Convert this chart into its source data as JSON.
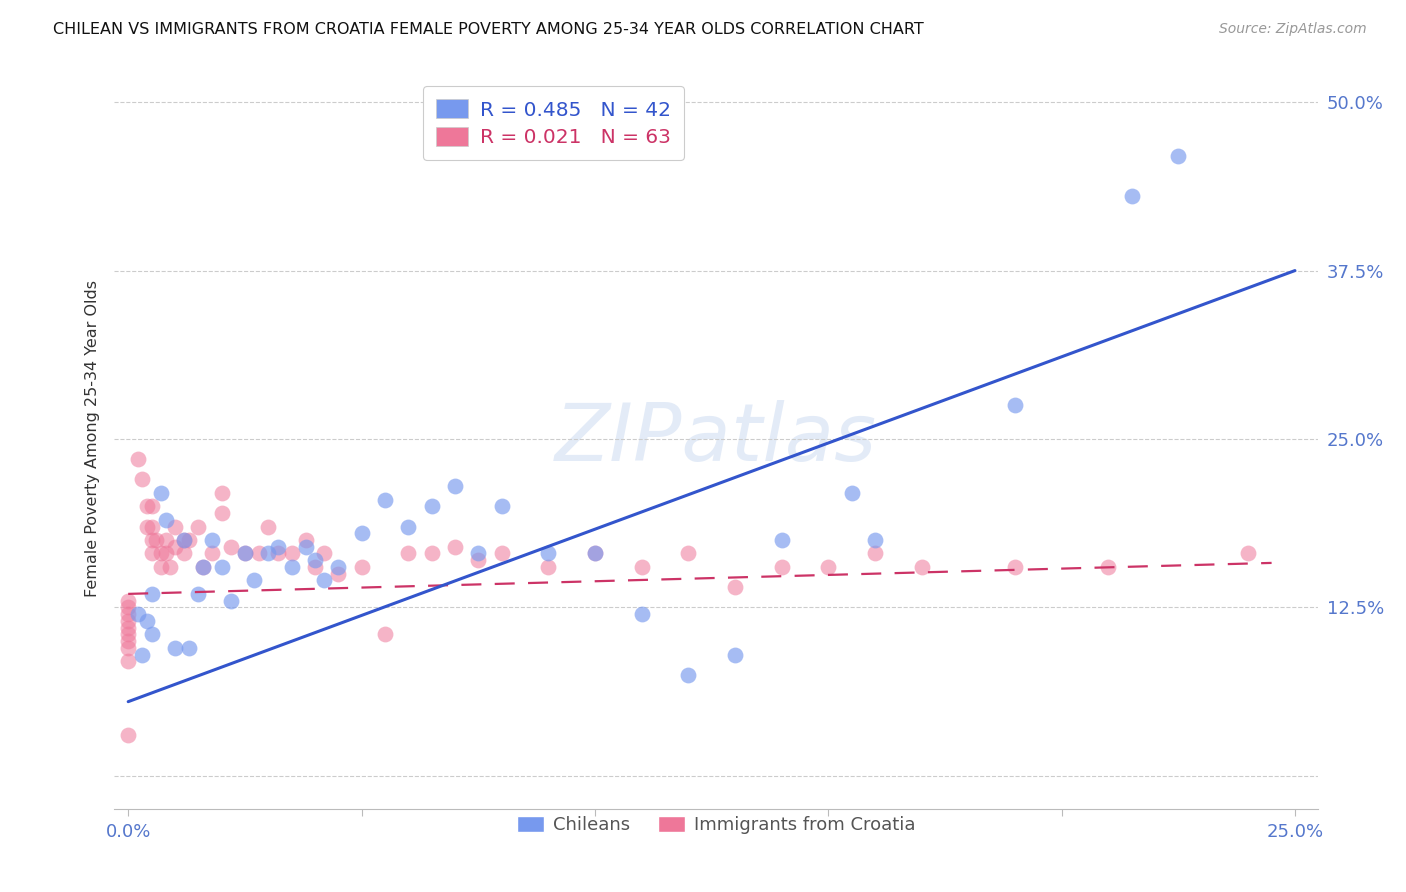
{
  "title": "CHILEAN VS IMMIGRANTS FROM CROATIA FEMALE POVERTY AMONG 25-34 YEAR OLDS CORRELATION CHART",
  "source": "Source: ZipAtlas.com",
  "ylabel": "Female Poverty Among 25-34 Year Olds",
  "xlim": [
    -0.003,
    0.255
  ],
  "ylim": [
    -0.025,
    0.525
  ],
  "ytick_vals": [
    0.0,
    0.125,
    0.25,
    0.375,
    0.5
  ],
  "ytick_labels": [
    "",
    "12.5%",
    "25.0%",
    "37.5%",
    "50.0%"
  ],
  "xtick_vals": [
    0.0,
    0.05,
    0.1,
    0.15,
    0.2,
    0.25
  ],
  "xtick_labels": [
    "0.0%",
    "",
    "",
    "",
    "",
    "25.0%"
  ],
  "grid_color": "#cccccc",
  "background_color": "#ffffff",
  "blue_color": "#7799ee",
  "pink_color": "#ee7799",
  "blue_line_color": "#3355cc",
  "pink_line_color": "#cc3366",
  "legend_R_blue": "0.485",
  "legend_N_blue": "42",
  "legend_R_pink": "0.021",
  "legend_N_pink": "63",
  "legend_label_blue": "Chileans",
  "legend_label_pink": "Immigrants from Croatia",
  "watermark": "ZIPatlas",
  "blue_line_x": [
    0.0,
    0.25
  ],
  "blue_line_y": [
    0.055,
    0.375
  ],
  "pink_line_x": [
    0.0,
    0.245
  ],
  "pink_line_y": [
    0.135,
    0.158
  ],
  "blue_scatter_x": [
    0.002,
    0.003,
    0.004,
    0.005,
    0.005,
    0.007,
    0.008,
    0.01,
    0.012,
    0.013,
    0.015,
    0.016,
    0.018,
    0.02,
    0.022,
    0.025,
    0.027,
    0.03,
    0.032,
    0.035,
    0.038,
    0.04,
    0.042,
    0.045,
    0.05,
    0.055,
    0.06,
    0.065,
    0.07,
    0.075,
    0.08,
    0.09,
    0.1,
    0.11,
    0.12,
    0.13,
    0.14,
    0.155,
    0.16,
    0.19,
    0.215,
    0.225
  ],
  "blue_scatter_y": [
    0.12,
    0.09,
    0.115,
    0.135,
    0.105,
    0.21,
    0.19,
    0.095,
    0.175,
    0.095,
    0.135,
    0.155,
    0.175,
    0.155,
    0.13,
    0.165,
    0.145,
    0.165,
    0.17,
    0.155,
    0.17,
    0.16,
    0.145,
    0.155,
    0.18,
    0.205,
    0.185,
    0.2,
    0.215,
    0.165,
    0.2,
    0.165,
    0.165,
    0.12,
    0.075,
    0.09,
    0.175,
    0.21,
    0.175,
    0.275,
    0.43,
    0.46
  ],
  "pink_scatter_x": [
    0.0,
    0.0,
    0.0,
    0.0,
    0.0,
    0.0,
    0.0,
    0.0,
    0.0,
    0.0,
    0.002,
    0.003,
    0.004,
    0.004,
    0.005,
    0.005,
    0.005,
    0.005,
    0.006,
    0.007,
    0.007,
    0.008,
    0.008,
    0.009,
    0.01,
    0.01,
    0.012,
    0.012,
    0.013,
    0.015,
    0.016,
    0.018,
    0.02,
    0.02,
    0.022,
    0.025,
    0.028,
    0.03,
    0.032,
    0.035,
    0.038,
    0.04,
    0.042,
    0.045,
    0.05,
    0.055,
    0.06,
    0.065,
    0.07,
    0.075,
    0.08,
    0.09,
    0.1,
    0.11,
    0.12,
    0.13,
    0.14,
    0.15,
    0.16,
    0.17,
    0.19,
    0.21,
    0.24
  ],
  "pink_scatter_y": [
    0.13,
    0.125,
    0.12,
    0.115,
    0.11,
    0.105,
    0.1,
    0.095,
    0.085,
    0.03,
    0.235,
    0.22,
    0.2,
    0.185,
    0.2,
    0.185,
    0.175,
    0.165,
    0.175,
    0.165,
    0.155,
    0.175,
    0.165,
    0.155,
    0.185,
    0.17,
    0.175,
    0.165,
    0.175,
    0.185,
    0.155,
    0.165,
    0.21,
    0.195,
    0.17,
    0.165,
    0.165,
    0.185,
    0.165,
    0.165,
    0.175,
    0.155,
    0.165,
    0.15,
    0.155,
    0.105,
    0.165,
    0.165,
    0.17,
    0.16,
    0.165,
    0.155,
    0.165,
    0.155,
    0.165,
    0.14,
    0.155,
    0.155,
    0.165,
    0.155,
    0.155,
    0.155,
    0.165
  ]
}
